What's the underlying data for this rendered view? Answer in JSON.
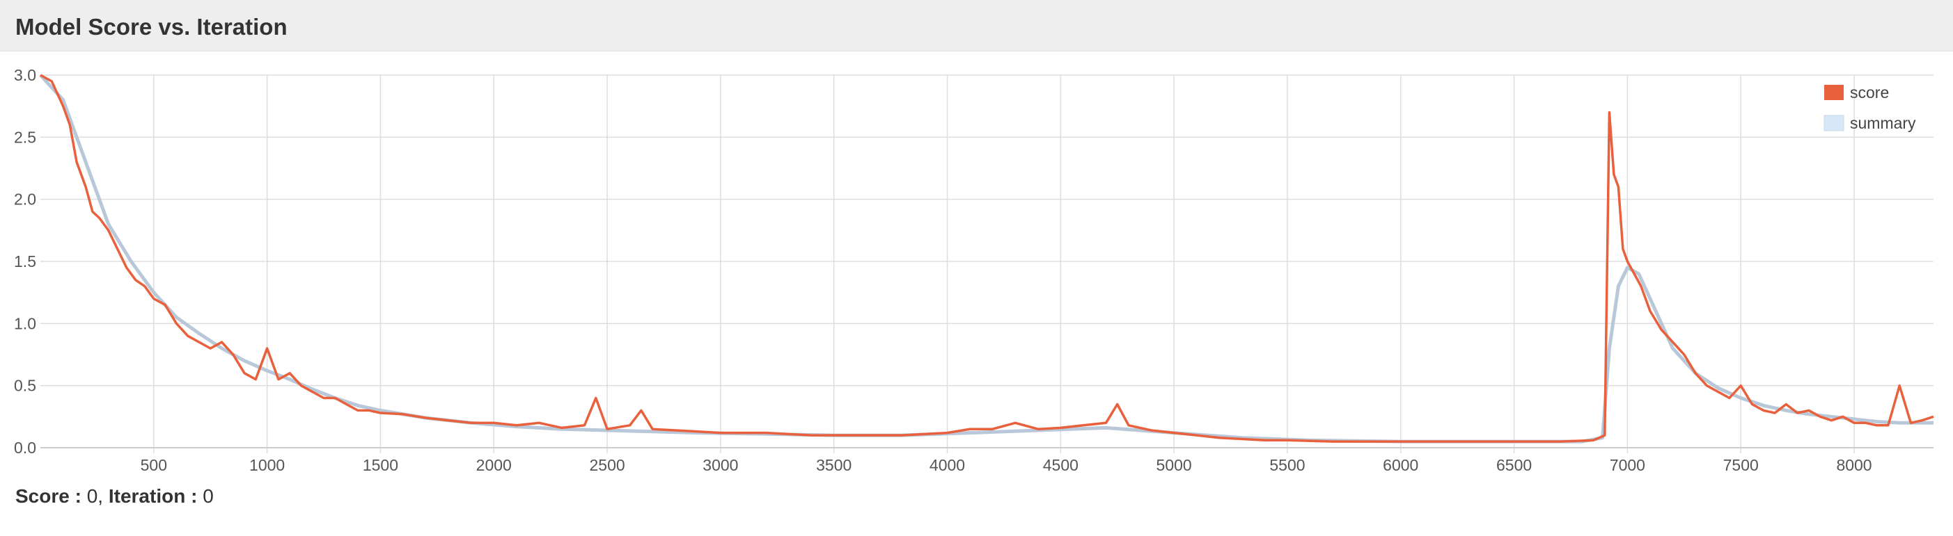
{
  "panel": {
    "title": "Model Score vs. Iteration"
  },
  "status": {
    "score_label": "Score :",
    "score_value": "0",
    "separator": ",",
    "iteration_label": "Iteration :",
    "iteration_value": "0"
  },
  "colors": {
    "score": "#e8603c",
    "summary": "#b8c8d8",
    "summary_legend_fill": "#d6e8f7",
    "grid": "#dddddd"
  },
  "chart_data": {
    "type": "line",
    "title": "Model Score vs. Iteration",
    "xlabel": "",
    "ylabel": "",
    "xlim": [
      0,
      8350
    ],
    "ylim": [
      0,
      3.0
    ],
    "x_ticks": [
      500,
      1000,
      1500,
      2000,
      2500,
      3000,
      3500,
      4000,
      4500,
      5000,
      5500,
      6000,
      6500,
      7000,
      7500,
      8000
    ],
    "y_ticks": [
      0.0,
      0.5,
      1.0,
      1.5,
      2.0,
      2.5,
      3.0
    ],
    "y_tick_labels": [
      "0.0",
      "0.5",
      "1.0",
      "1.5",
      "2.0",
      "2.5",
      "3.0"
    ],
    "grid": true,
    "legend_position": "top-right",
    "series": [
      {
        "name": "score",
        "color": "#e8603c",
        "x": [
          0,
          50,
          100,
          130,
          160,
          200,
          230,
          260,
          300,
          340,
          380,
          420,
          460,
          500,
          550,
          600,
          650,
          700,
          750,
          800,
          850,
          900,
          950,
          1000,
          1050,
          1100,
          1150,
          1200,
          1250,
          1300,
          1350,
          1400,
          1450,
          1500,
          1600,
          1700,
          1800,
          1900,
          2000,
          2100,
          2200,
          2300,
          2400,
          2450,
          2500,
          2600,
          2650,
          2700,
          2800,
          2900,
          3000,
          3200,
          3400,
          3600,
          3800,
          4000,
          4100,
          4200,
          4300,
          4400,
          4500,
          4600,
          4700,
          4750,
          4800,
          4900,
          5000,
          5100,
          5200,
          5300,
          5400,
          5500,
          5700,
          5900,
          6100,
          6300,
          6500,
          6700,
          6850,
          6900,
          6920,
          6940,
          6960,
          6980,
          7000,
          7030,
          7060,
          7100,
          7150,
          7200,
          7250,
          7300,
          7350,
          7400,
          7450,
          7500,
          7550,
          7600,
          7650,
          7700,
          7750,
          7800,
          7850,
          7900,
          7950,
          8000,
          8050,
          8100,
          8150,
          8200,
          8250,
          8300,
          8350
        ],
        "values": [
          3.0,
          2.95,
          2.75,
          2.6,
          2.3,
          2.1,
          1.9,
          1.85,
          1.75,
          1.6,
          1.45,
          1.35,
          1.3,
          1.2,
          1.15,
          1.0,
          0.9,
          0.85,
          0.8,
          0.85,
          0.75,
          0.6,
          0.55,
          0.8,
          0.55,
          0.6,
          0.5,
          0.45,
          0.4,
          0.4,
          0.35,
          0.3,
          0.3,
          0.28,
          0.27,
          0.24,
          0.22,
          0.2,
          0.2,
          0.18,
          0.2,
          0.16,
          0.18,
          0.4,
          0.15,
          0.18,
          0.3,
          0.15,
          0.14,
          0.13,
          0.12,
          0.12,
          0.1,
          0.1,
          0.1,
          0.12,
          0.15,
          0.15,
          0.2,
          0.15,
          0.16,
          0.18,
          0.2,
          0.35,
          0.18,
          0.14,
          0.12,
          0.1,
          0.08,
          0.07,
          0.06,
          0.06,
          0.05,
          0.05,
          0.05,
          0.05,
          0.05,
          0.05,
          0.06,
          0.1,
          2.7,
          2.2,
          2.1,
          1.6,
          1.5,
          1.4,
          1.3,
          1.1,
          0.95,
          0.85,
          0.75,
          0.6,
          0.5,
          0.45,
          0.4,
          0.5,
          0.35,
          0.3,
          0.28,
          0.35,
          0.28,
          0.3,
          0.25,
          0.22,
          0.25,
          0.2,
          0.2,
          0.18,
          0.18,
          0.5,
          0.2,
          0.22,
          0.25
        ]
      },
      {
        "name": "summary",
        "color": "#b8c8d8",
        "x": [
          0,
          100,
          200,
          300,
          400,
          500,
          600,
          700,
          800,
          900,
          1000,
          1100,
          1200,
          1300,
          1400,
          1500,
          1700,
          1900,
          2100,
          2300,
          2500,
          2700,
          2900,
          3200,
          3500,
          3800,
          4100,
          4400,
          4700,
          5000,
          5300,
          5600,
          6000,
          6400,
          6800,
          6890,
          6920,
          6960,
          7000,
          7050,
          7100,
          7150,
          7200,
          7300,
          7400,
          7500,
          7600,
          7700,
          7800,
          7900,
          8000,
          8100,
          8200,
          8350
        ],
        "values": [
          3.0,
          2.8,
          2.3,
          1.8,
          1.5,
          1.25,
          1.05,
          0.92,
          0.8,
          0.7,
          0.62,
          0.55,
          0.47,
          0.4,
          0.34,
          0.3,
          0.24,
          0.2,
          0.17,
          0.15,
          0.14,
          0.13,
          0.12,
          0.11,
          0.1,
          0.1,
          0.12,
          0.14,
          0.16,
          0.12,
          0.08,
          0.06,
          0.05,
          0.05,
          0.05,
          0.08,
          0.8,
          1.3,
          1.45,
          1.4,
          1.2,
          1.0,
          0.8,
          0.6,
          0.48,
          0.4,
          0.34,
          0.3,
          0.27,
          0.25,
          0.23,
          0.21,
          0.2,
          0.2
        ]
      }
    ]
  }
}
